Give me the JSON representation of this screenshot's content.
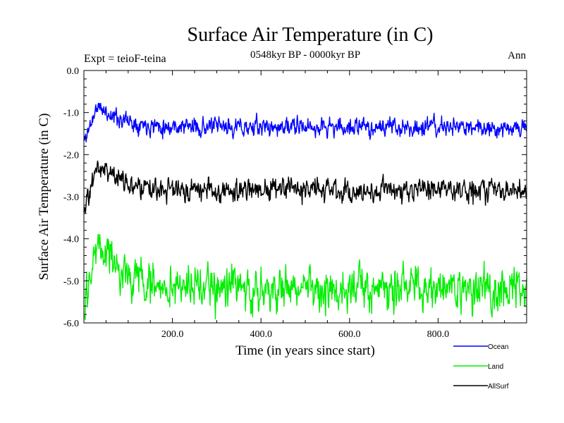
{
  "chart_data": {
    "type": "line",
    "title": "Surface Air Temperature (in C)",
    "subtitle": "0548kyr BP - 0000kyr BP",
    "top_left_label": "Expt = teioF-teina",
    "top_right_label": "Ann",
    "xlabel": "Time (in years since start)",
    "ylabel": "Surface Air Temperature (in C)",
    "xlim": [
      0,
      1000
    ],
    "ylim": [
      -6.0,
      0.0
    ],
    "x_ticks": [
      200,
      400,
      600,
      800
    ],
    "x_tick_labels": [
      "200.0",
      "400.0",
      "600.0",
      "800.0"
    ],
    "y_ticks": [
      0.0,
      -1.0,
      -2.0,
      -3.0,
      -4.0,
      -5.0,
      -6.0
    ],
    "y_tick_labels": [
      "0.0",
      "-1.0",
      "-2.0",
      "-3.0",
      "-4.0",
      "-5.0",
      "-6.0"
    ],
    "x_step": 1,
    "series": [
      {
        "name": "Ocean",
        "color": "#0000ff",
        "baseline": -1.35,
        "noise": 0.13,
        "start_value": -1.7,
        "peak_value": -0.85,
        "peak_year": 30,
        "settle_years": 180,
        "seed": 11,
        "range_min": -1.85,
        "range_max": -0.78
      },
      {
        "name": "Land",
        "color": "#00ee00",
        "baseline": -5.2,
        "noise": 0.3,
        "start_value": -5.5,
        "peak_value": -4.1,
        "peak_year": 30,
        "settle_years": 180,
        "seed": 29,
        "range_min": -5.95,
        "range_max": -3.9
      },
      {
        "name": "AllSurf",
        "color": "#000000",
        "baseline": -2.85,
        "noise": 0.16,
        "start_value": -3.3,
        "peak_value": -2.2,
        "peak_year": 30,
        "settle_years": 180,
        "seed": 47,
        "range_min": -3.45,
        "range_max": -2.15
      }
    ]
  }
}
